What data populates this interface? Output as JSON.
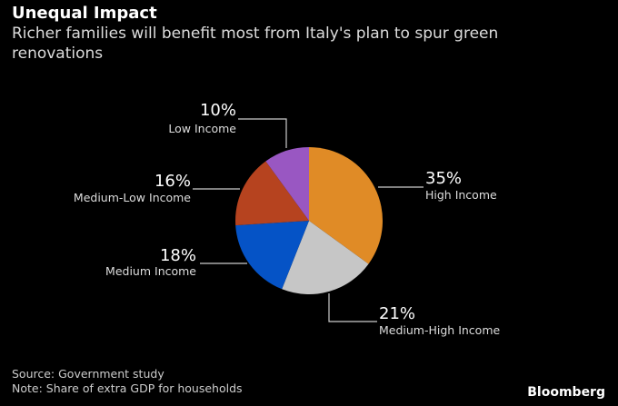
{
  "title": "Unequal Impact",
  "subtitle": "Richer families will benefit most from Italy's plan to spur green renovations",
  "source": "Source: Government study",
  "note": "Note: Share of extra GDP for households",
  "logo": "Bloomberg",
  "chart_data": {
    "type": "pie",
    "title": "Unequal Impact",
    "start": "12 o'clock, clockwise",
    "slices": [
      {
        "label": "High Income",
        "value": 35,
        "display": "35%",
        "color": "#E08B26"
      },
      {
        "label": "Medium-High Income",
        "value": 21,
        "display": "21%",
        "color": "#C6C6C6"
      },
      {
        "label": "Medium Income",
        "value": 18,
        "display": "18%",
        "color": "#0553C6"
      },
      {
        "label": "Medium-Low Income",
        "value": 16,
        "display": "16%",
        "color": "#B6431F"
      },
      {
        "label": "Low Income",
        "value": 10,
        "display": "10%",
        "color": "#9957C2"
      }
    ]
  }
}
